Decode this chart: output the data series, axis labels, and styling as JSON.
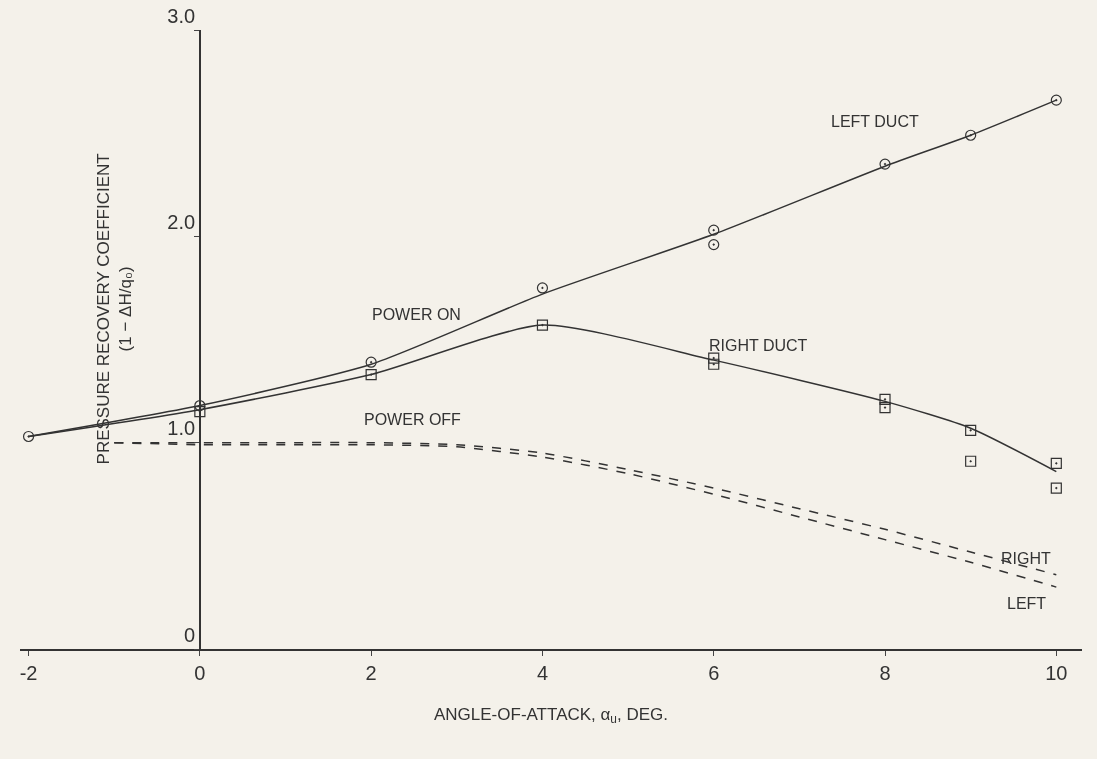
{
  "chart_data": {
    "type": "line",
    "xlabel": "ANGLE-OF-ATTACK, α$_{u}$, DEG.",
    "ylabel": "PRESSURE RECOVERY COEFFICIENT\n(1 − ΔH/q₀)",
    "xlim": [
      -2.1,
      10.3
    ],
    "ylim": [
      0,
      3.0
    ],
    "xticks": [
      -2,
      0,
      2,
      4,
      6,
      8,
      10
    ],
    "yticks": [
      0,
      {
        "value": 1,
        "label": "1.0"
      },
      {
        "value": 2,
        "label": "2.0"
      },
      {
        "value": 3,
        "label": "3.0"
      }
    ],
    "grid": false,
    "legend": false,
    "series": [
      {
        "name": "LEFT DUCT",
        "color": "#333333",
        "line_style": "solid",
        "marker": "none",
        "x": [
          -2,
          0,
          2,
          4,
          6,
          8,
          9,
          10
        ],
        "values": [
          1.03,
          1.18,
          1.38,
          1.72,
          2.01,
          2.34,
          2.49,
          2.66
        ]
      },
      {
        "name": "RIGHT DUCT",
        "color": "#333333",
        "line_style": "solid",
        "marker": "none",
        "x": [
          -2,
          0,
          2,
          4,
          6,
          8,
          9,
          10
        ],
        "values": [
          1.03,
          1.16,
          1.33,
          1.57,
          1.4,
          1.2,
          1.07,
          0.86
        ]
      },
      {
        "name": "RIGHT",
        "color": "#333333",
        "line_style": "dashed",
        "marker": "none",
        "x": [
          -1,
          0,
          1,
          2,
          3,
          4,
          5,
          6,
          7,
          8,
          9,
          10
        ],
        "values": [
          1.0,
          1.0,
          1.0,
          1.0,
          0.99,
          0.95,
          0.87,
          0.78,
          0.68,
          0.58,
          0.47,
          0.36
        ]
      },
      {
        "name": "LEFT",
        "color": "#333333",
        "line_style": "dashed",
        "marker": "none",
        "x": [
          -1,
          0,
          1,
          2,
          3,
          4,
          5,
          6,
          7,
          8,
          9,
          10
        ],
        "values": [
          1.0,
          0.99,
          0.99,
          0.99,
          0.98,
          0.93,
          0.85,
          0.75,
          0.64,
          0.53,
          0.42,
          0.3
        ]
      },
      {
        "type": "scatter",
        "color": "#333333",
        "marker": "circle",
        "x": [
          -2,
          0,
          2,
          4,
          6,
          6,
          8,
          9,
          10
        ],
        "values": [
          1.03,
          1.18,
          1.39,
          1.75,
          2.03,
          1.96,
          2.35,
          2.49,
          2.66
        ]
      },
      {
        "type": "scatter",
        "color": "#333333",
        "marker": "square",
        "x": [
          0,
          2,
          4,
          6,
          6,
          8,
          8,
          9,
          9,
          10,
          10
        ],
        "values": [
          1.15,
          1.33,
          1.57,
          1.41,
          1.38,
          1.21,
          1.17,
          1.06,
          0.91,
          0.9,
          0.78
        ]
      }
    ],
    "annotations": [
      "POWER ON",
      "POWER OFF"
    ]
  }
}
